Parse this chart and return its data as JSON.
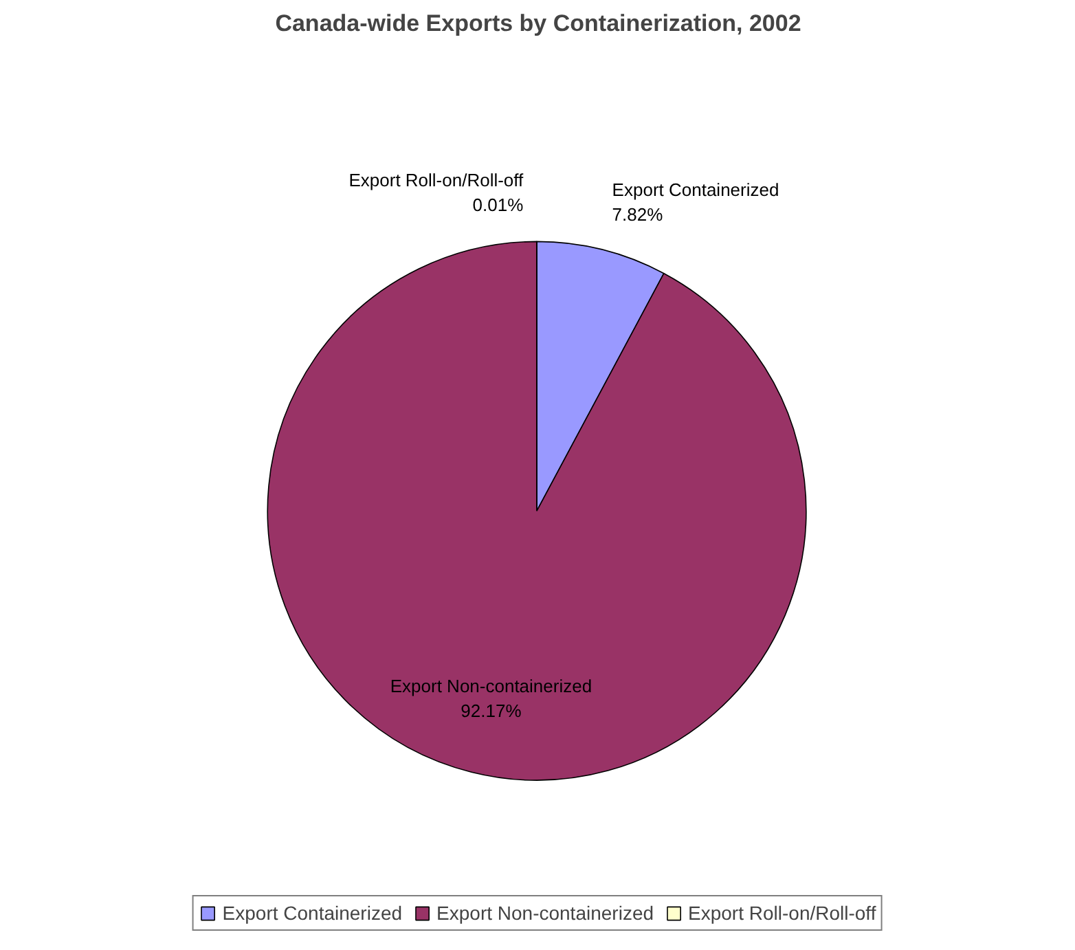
{
  "chart_data": {
    "type": "pie",
    "title": "Canada-wide Exports by Containerization, 2002",
    "categories": [
      "Export Containerized",
      "Export Non-containerized",
      "Export Roll-on/Roll-off"
    ],
    "values": [
      7.82,
      92.17,
      0.01
    ],
    "colors": [
      "#9999ff",
      "#993366",
      "#ffffcc"
    ],
    "value_labels": [
      "7.82%",
      "92.17%",
      "0.01%"
    ],
    "legend": "bottom"
  }
}
